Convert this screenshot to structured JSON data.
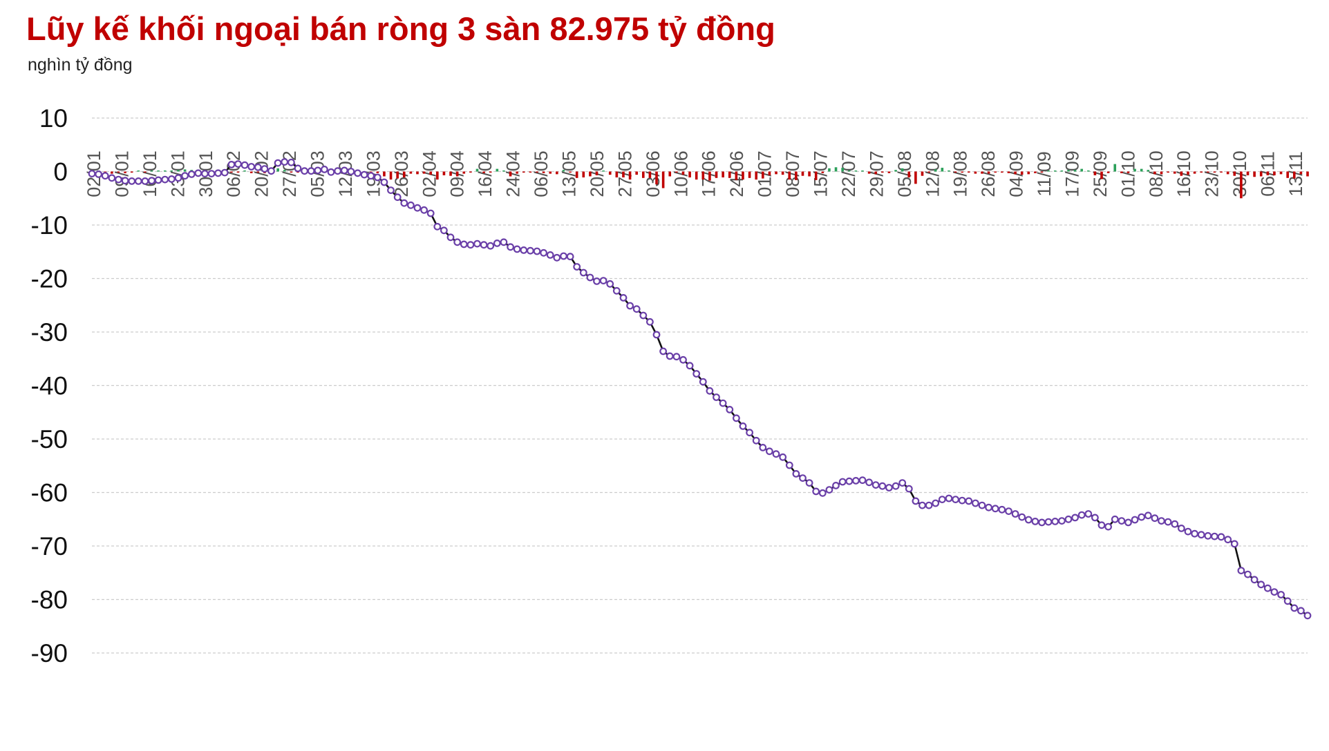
{
  "chart_data": {
    "type": "line",
    "title": "Lũy kế khối ngoại bán ròng 3 sàn 82.975 tỷ đồng",
    "ylabel": "nghìn tỷ đồng",
    "xlabel": "",
    "ylim": [
      -90,
      10
    ],
    "y_ticks": [
      "10",
      "0",
      "-10",
      "-20",
      "-30",
      "-40",
      "-50",
      "-60",
      "-70",
      "-80",
      "-90"
    ],
    "x_tick_labels": [
      "02/01",
      "09/01",
      "16/01",
      "23/01",
      "30/01",
      "06/02",
      "20/02",
      "27/02",
      "05/03",
      "12/03",
      "19/03",
      "26/03",
      "02/04",
      "09/04",
      "16/04",
      "24/04",
      "06/05",
      "13/05",
      "20/05",
      "27/05",
      "03/06",
      "10/06",
      "17/06",
      "24/06",
      "01/07",
      "08/07",
      "15/07",
      "22/07",
      "29/07",
      "05/08",
      "12/08",
      "19/08",
      "26/08",
      "04/09",
      "11/09",
      "17/09",
      "25/09",
      "01/10",
      "08/10",
      "16/10",
      "23/10",
      "30/10",
      "06/11",
      "13/11"
    ],
    "grid": true,
    "legend": "none",
    "colors": {
      "title": "#c00000",
      "line": "#111111",
      "marker": "#6a3fa8",
      "marker_fill": "#ffffff",
      "bar_positive": "#2ca05a",
      "bar_negative": "#c00000",
      "grid": "#cccccc"
    },
    "series": [
      {
        "type": "line",
        "values": [
          -0.4,
          -0.5,
          -0.8,
          -1.2,
          -1.5,
          -1.7,
          -1.8,
          -1.8,
          -1.8,
          -1.7,
          -1.6,
          -1.5,
          -1.4,
          -1.2,
          -0.8,
          -0.5,
          -0.3,
          -0.4,
          -0.4,
          -0.3,
          -0.2,
          1.3,
          1.4,
          1.2,
          0.9,
          0.8,
          0.5,
          0.1,
          1.6,
          1.8,
          1.7,
          0.6,
          0.1,
          0.1,
          0.2,
          0.4,
          -0.1,
          0.1,
          0.2,
          0.0,
          -0.3,
          -0.6,
          -0.8,
          -1.1,
          -2.0,
          -3.5,
          -4.8,
          -5.9,
          -6.3,
          -6.8,
          -7.2,
          -7.8,
          -10.3,
          -11.0,
          -12.3,
          -13.2,
          -13.6,
          -13.7,
          -13.5,
          -13.7,
          -13.9,
          -13.4,
          -13.2,
          -14.1,
          -14.5,
          -14.7,
          -14.8,
          -14.9,
          -15.2,
          -15.6,
          -16.1,
          -15.8,
          -15.9,
          -17.8,
          -18.9,
          -19.8,
          -20.5,
          -20.4,
          -21.0,
          -22.3,
          -23.6,
          -25.1,
          -25.7,
          -26.9,
          -28.1,
          -30.5,
          -33.6,
          -34.5,
          -34.6,
          -35.2,
          -36.3,
          -37.8,
          -39.3,
          -41.0,
          -42.2,
          -43.3,
          -44.5,
          -46.1,
          -47.6,
          -48.8,
          -50.3,
          -51.6,
          -52.3,
          -52.8,
          -53.4,
          -54.9,
          -56.5,
          -57.3,
          -58.2,
          -59.8,
          -60.1,
          -59.5,
          -58.7,
          -58.0,
          -57.9,
          -57.8,
          -57.7,
          -58.1,
          -58.6,
          -58.8,
          -59.1,
          -58.8,
          -58.2,
          -59.3,
          -61.6,
          -62.4,
          -62.4,
          -62.0,
          -61.3,
          -61.1,
          -61.3,
          -61.5,
          -61.6,
          -62.0,
          -62.4,
          -62.8,
          -63.0,
          -63.2,
          -63.5,
          -64.0,
          -64.6,
          -65.1,
          -65.4,
          -65.6,
          -65.5,
          -65.4,
          -65.3,
          -65.0,
          -64.7,
          -64.2,
          -64.0,
          -64.7,
          -66.1,
          -66.4,
          -65.0,
          -65.3,
          -65.6,
          -65.1,
          -64.6,
          -64.3,
          -64.8,
          -65.3,
          -65.5,
          -65.9,
          -66.7,
          -67.3,
          -67.7,
          -67.9,
          -68.1,
          -68.2,
          -68.3,
          -68.8,
          -69.6,
          -74.6,
          -75.3,
          -76.3,
          -77.2,
          -77.9,
          -78.6,
          -79.1,
          -80.3,
          -81.6,
          -82.1,
          -83.0
        ]
      }
    ],
    "daily_bars": [
      -0.2,
      0.1,
      -0.3,
      -0.4,
      -0.2,
      -0.3,
      -0.2,
      0.1,
      -0.1,
      0.1,
      0.1,
      0.2,
      0.2,
      0.3,
      0.4,
      0.3,
      0.2,
      0.1,
      -0.1,
      0.2,
      0.4,
      -0.1,
      -0.2,
      0.2,
      -0.3,
      -0.2,
      -0.3,
      -0.4,
      0.6,
      0.3,
      -0.1,
      -0.2,
      -0.3,
      0.1,
      0.1,
      0.2,
      -0.2,
      0.2,
      0.1,
      -0.2,
      -0.3,
      -0.3,
      -0.2,
      -0.3,
      -0.9,
      -1.5,
      -1.3,
      -1.1,
      -0.4,
      -0.5,
      -0.4,
      -0.6,
      -1.5,
      -0.7,
      -0.8,
      -0.9,
      -0.4,
      -0.1,
      0.5,
      -0.3,
      -0.2,
      0.5,
      0.2,
      -0.9,
      -0.4,
      -0.2,
      -0.1,
      -0.1,
      -0.3,
      -0.4,
      -0.5,
      0.3,
      -0.1,
      -1.2,
      -1.1,
      -0.9,
      -0.7,
      0.1,
      -0.6,
      -1.1,
      -1.1,
      -1.5,
      -0.6,
      -1.2,
      -1.2,
      -2.4,
      -3.1,
      -0.9,
      -0.1,
      -0.6,
      -1.1,
      -1.5,
      -1.5,
      -1.7,
      -1.2,
      -1.1,
      -1.2,
      -1.6,
      -1.5,
      -1.2,
      -1.5,
      -1.3,
      -0.7,
      -0.5,
      -0.6,
      -1.5,
      -1.6,
      -0.8,
      -0.9,
      -1.6,
      -0.3,
      0.6,
      0.8,
      0.7,
      0.1,
      0.1,
      0.1,
      -0.4,
      -0.5,
      -0.2,
      -0.3,
      0.3,
      0.6,
      -1.1,
      -2.3,
      -0.8,
      -0.1,
      0.4,
      0.7,
      0.2,
      -0.2,
      -0.2,
      -0.1,
      -0.4,
      -0.4,
      -0.4,
      -0.2,
      -0.2,
      -0.3,
      -0.5,
      -0.6,
      -0.5,
      -0.3,
      -0.2,
      0.1,
      0.1,
      0.1,
      0.3,
      0.3,
      0.5,
      0.2,
      -0.7,
      -1.4,
      -0.3,
      1.4,
      -0.3,
      -0.3,
      0.5,
      0.5,
      0.3,
      -0.5,
      -0.5,
      -0.2,
      -0.4,
      -0.8,
      -0.6,
      -0.4,
      -0.2,
      -0.2,
      -0.1,
      -0.1,
      -0.5,
      -0.8,
      -5.0,
      -0.7,
      -1.0,
      -0.9,
      -0.7,
      -0.7,
      -0.5,
      -1.2,
      -1.3,
      -0.5,
      -0.9
    ]
  }
}
